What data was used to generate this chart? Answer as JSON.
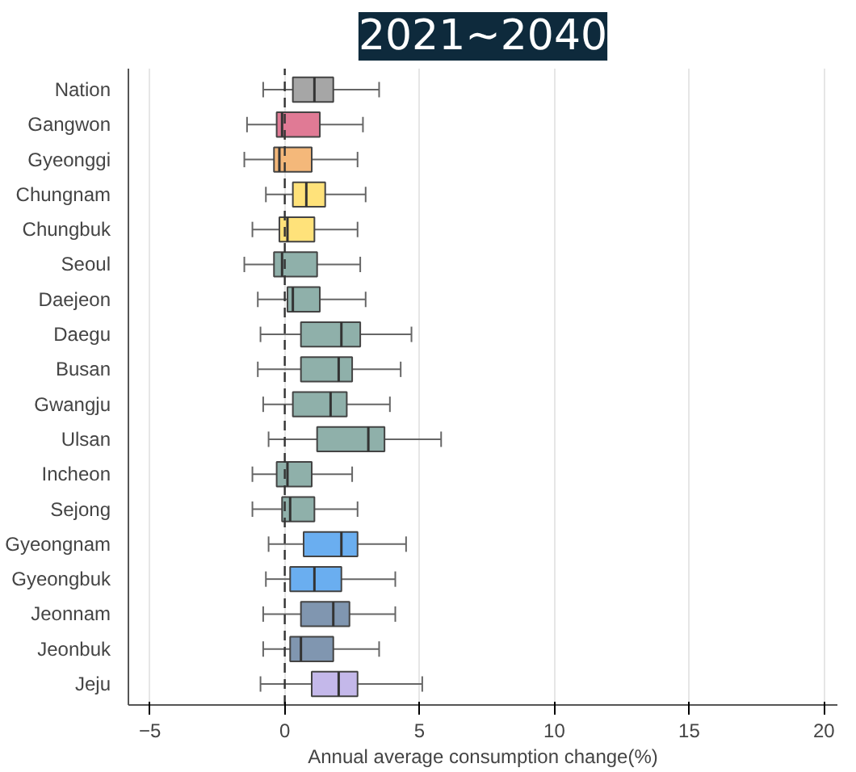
{
  "chart_data": {
    "type": "box",
    "title": "2021~2040",
    "xlabel": "Annual average consumption change(%)",
    "orientation": "horizontal",
    "categories": [
      "Nation",
      "Gangwon",
      "Gyeonggi",
      "Chungnam",
      "Chungbuk",
      "Seoul",
      "Daejeon",
      "Daegu",
      "Busan",
      "Gwangju",
      "Ulsan",
      "Incheon",
      "Sejong",
      "Gyeongnam",
      "Gyeongbuk",
      "Jeonnam",
      "Jeonbuk",
      "Jeju"
    ],
    "boxes": [
      {
        "low": -0.8,
        "q1": 0.3,
        "median": 1.1,
        "q3": 1.8,
        "high": 3.5
      },
      {
        "low": -1.4,
        "q1": -0.3,
        "median": -0.1,
        "q3": 1.3,
        "high": 2.9
      },
      {
        "low": -1.5,
        "q1": -0.4,
        "median": -0.2,
        "q3": 1.0,
        "high": 2.7
      },
      {
        "low": -0.7,
        "q1": 0.3,
        "median": 0.8,
        "q3": 1.5,
        "high": 3.0
      },
      {
        "low": -1.2,
        "q1": -0.2,
        "median": 0.1,
        "q3": 1.1,
        "high": 2.7
      },
      {
        "low": -1.5,
        "q1": -0.4,
        "median": -0.1,
        "q3": 1.2,
        "high": 2.8
      },
      {
        "low": -1.0,
        "q1": 0.1,
        "median": 0.3,
        "q3": 1.3,
        "high": 3.0
      },
      {
        "low": -0.9,
        "q1": 0.6,
        "median": 2.1,
        "q3": 2.8,
        "high": 4.7
      },
      {
        "low": -1.0,
        "q1": 0.6,
        "median": 2.0,
        "q3": 2.5,
        "high": 4.3
      },
      {
        "low": -0.8,
        "q1": 0.3,
        "median": 1.7,
        "q3": 2.3,
        "high": 3.9
      },
      {
        "low": -0.6,
        "q1": 1.2,
        "median": 3.1,
        "q3": 3.7,
        "high": 5.8
      },
      {
        "low": -1.2,
        "q1": -0.3,
        "median": 0.1,
        "q3": 1.0,
        "high": 2.5
      },
      {
        "low": -1.2,
        "q1": -0.1,
        "median": 0.2,
        "q3": 1.1,
        "high": 2.7
      },
      {
        "low": -0.6,
        "q1": 0.7,
        "median": 2.1,
        "q3": 2.7,
        "high": 4.5
      },
      {
        "low": -0.7,
        "q1": 0.2,
        "median": 1.1,
        "q3": 2.1,
        "high": 4.1
      },
      {
        "low": -0.8,
        "q1": 0.6,
        "median": 1.8,
        "q3": 2.4,
        "high": 4.1
      },
      {
        "low": -0.8,
        "q1": 0.2,
        "median": 0.6,
        "q3": 1.8,
        "high": 3.5
      },
      {
        "low": -0.9,
        "q1": 1.0,
        "median": 2.0,
        "q3": 2.7,
        "high": 5.1
      }
    ],
    "colors": [
      "#a6a6a6",
      "#e07a95",
      "#f4b87a",
      "#ffe27a",
      "#ffe27a",
      "#8fb0aa",
      "#8fb0aa",
      "#8fb0aa",
      "#8fb0aa",
      "#8fb0aa",
      "#8fb0aa",
      "#8fb0aa",
      "#8fb0aa",
      "#6aaef0",
      "#6aaef0",
      "#8096b0",
      "#8096b0",
      "#c4b8ea"
    ],
    "xlim": [
      -5.8,
      20.5
    ],
    "xticks": [
      -5,
      0,
      5,
      10,
      15,
      20
    ],
    "grid": "x",
    "ref_lines": [
      {
        "axis": "x",
        "value": 0,
        "line_style": "dashed",
        "color": "#333333"
      }
    ]
  }
}
